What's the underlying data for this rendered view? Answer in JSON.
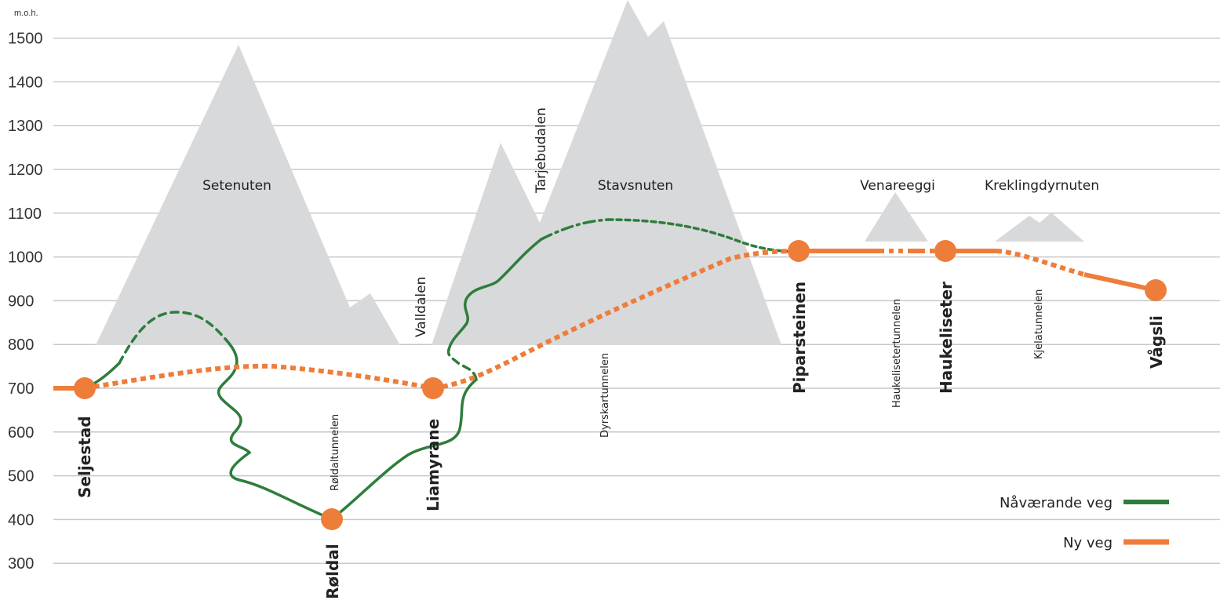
{
  "chart_data": {
    "type": "line",
    "ylabel": "m.o.h.",
    "yticks": [
      300,
      400,
      500,
      600,
      700,
      800,
      900,
      1000,
      1100,
      1200,
      1300,
      1400,
      1500
    ],
    "ylim": [
      250,
      1560
    ],
    "grid": true,
    "legend": {
      "position": "bottom-right",
      "items": [
        {
          "name": "Nåværande veg",
          "color": "#2e7d3c"
        },
        {
          "name": "Ny veg",
          "color": "#ee7d3a"
        }
      ]
    },
    "colors": {
      "current_road": "#2e7d3c",
      "new_road": "#ee7d3a",
      "mountain": "#d8d9db",
      "grid": "#c9c9c9"
    },
    "places": [
      {
        "name": "Seljestad",
        "elevation": 700
      },
      {
        "name": "Røldal",
        "elevation": 400
      },
      {
        "name": "Liamyrane",
        "elevation": 700
      },
      {
        "name": "Piparsteinen",
        "elevation": 1015
      },
      {
        "name": "Haukeliseter",
        "elevation": 1015
      },
      {
        "name": "Vågsli",
        "elevation": 925
      }
    ],
    "mountains": [
      {
        "name": "Setenuten",
        "peak_elevation": 1490
      },
      {
        "name": "Tarjebudalen",
        "peak_elevation": 1260
      },
      {
        "name": "Stavsnuten",
        "peak_elevation": 1580
      },
      {
        "name": "Venareeggi",
        "peak_elevation": 1150
      },
      {
        "name": "Kreklingdyrnuten",
        "peak_elevation": 1100
      }
    ],
    "valleys": [
      "Valldalen"
    ],
    "tunnels": [
      "Røldaltunnelen",
      "Dyrskartunnelen",
      "Haukelisetertunnelen",
      "Kjelatunnelen"
    ]
  }
}
